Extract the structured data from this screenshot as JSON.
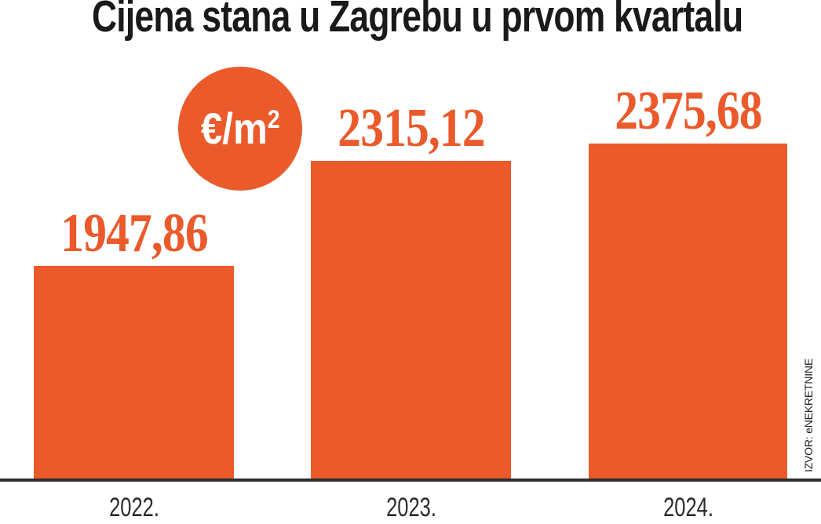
{
  "title": "Cijena stana u Zagrebu u prvom kvartalu",
  "badge": {
    "base": "€/m",
    "sup": "2"
  },
  "source": "IZVOR: eNEKRETNINE",
  "colors": {
    "accent": "#EA5A2B",
    "title_text": "#1A1A1A",
    "axis_line": "#2E2E2E",
    "year_label_text": "#2B2B2B",
    "badge_text": "#FFFFFF"
  },
  "chart_data": {
    "type": "bar",
    "title": "Cijena stana u Zagrebu u prvom kvartalu",
    "unit": "€/m²",
    "categories": [
      "2022.",
      "2023.",
      "2024."
    ],
    "values": [
      1947.86,
      2315.12,
      2375.68
    ],
    "value_labels": [
      "1947,86",
      "2315,12",
      "2375,68"
    ],
    "series": [
      {
        "name": "Cijena stana (€/m²)",
        "values": [
          1947.86,
          2315.12,
          2375.68
        ]
      }
    ],
    "source": "IZVOR: eNEKRETNINE",
    "ylim": [
      1200,
      2450
    ],
    "xlabel": "",
    "ylabel": "€/m²",
    "grid": false,
    "legend": false,
    "bar_color": "#EA5A2B"
  }
}
